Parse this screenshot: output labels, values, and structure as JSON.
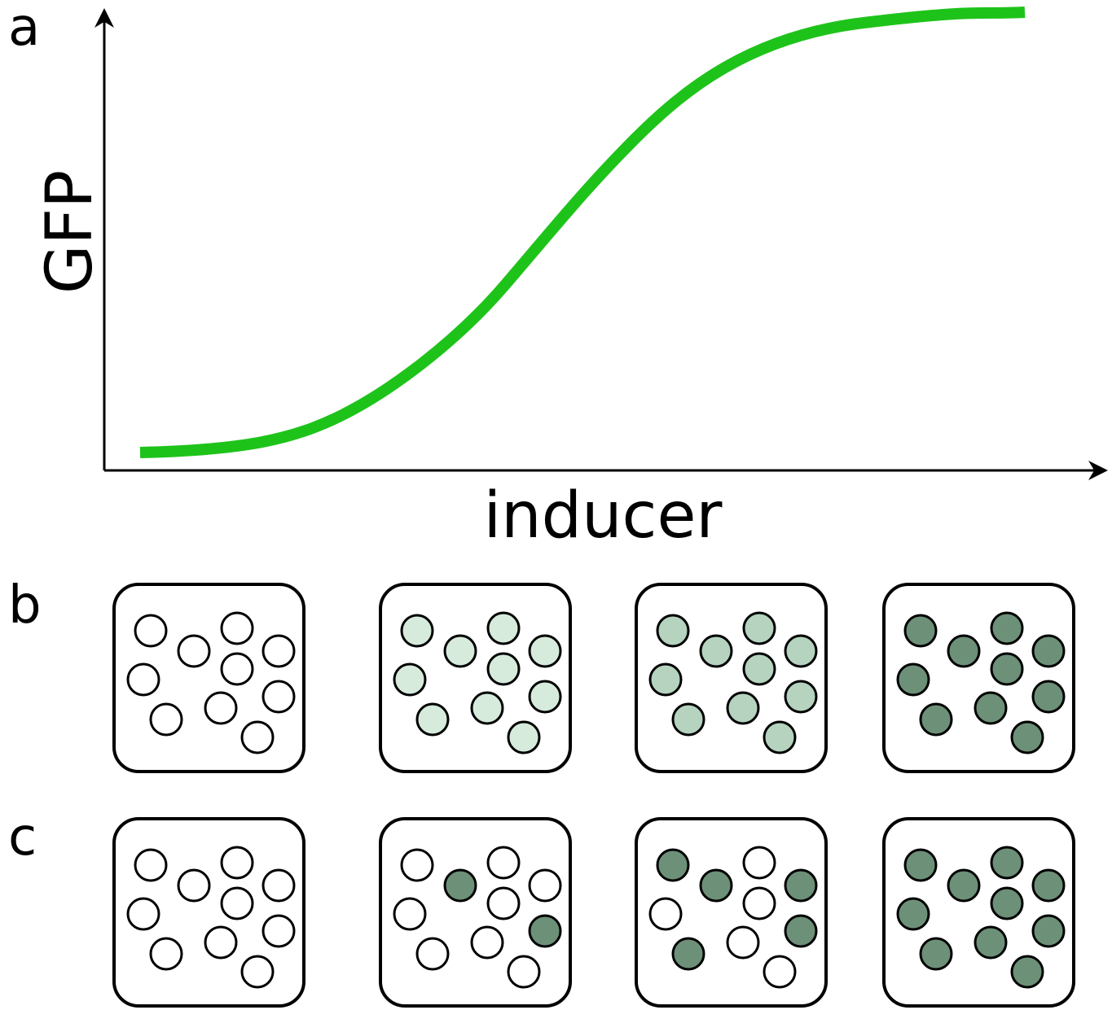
{
  "panels": {
    "a": {
      "label": "a",
      "y_axis_label": "GFP",
      "x_axis_label": "inducer"
    },
    "b": {
      "label": "b"
    },
    "c": {
      "label": "c"
    }
  }
}
